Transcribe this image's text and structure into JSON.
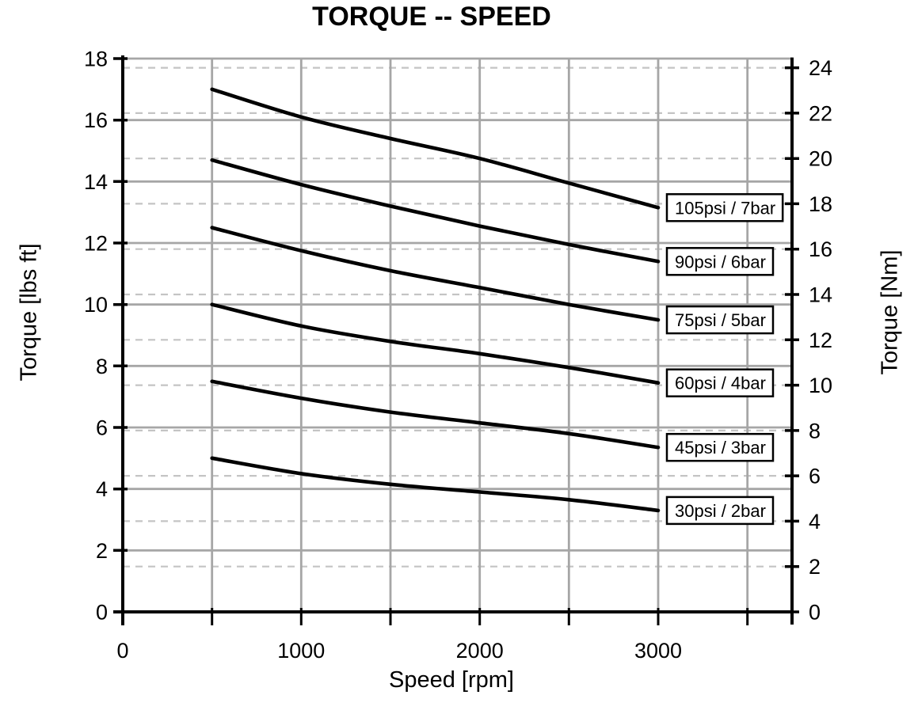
{
  "title": "TORQUE -- SPEED",
  "axes": {
    "x_label": "Speed [rpm]",
    "y_left_label": "Torque [lbs ft]",
    "y_right_label": "Torque [Nm]"
  },
  "chart_data": {
    "type": "line",
    "title": "TORQUE -- SPEED",
    "xlabel": "Speed [rpm]",
    "ylabel_left": "Torque [lbs ft]",
    "ylabel_right": "Torque [Nm]",
    "xlim": [
      0,
      3750
    ],
    "ylim_left": [
      0,
      18
    ],
    "ylim_right_Nm": [
      0,
      24.4
    ],
    "nm_per_lbsft": 1.35582,
    "x_tick_marks": [
      0,
      500,
      1000,
      1500,
      2000,
      2500,
      3000,
      3500
    ],
    "x_tick_labels": [
      0,
      1000,
      2000,
      3000
    ],
    "y_left_ticks": [
      0,
      2,
      4,
      6,
      8,
      10,
      12,
      14,
      16,
      18
    ],
    "y_right_ticks_Nm": [
      0,
      2,
      4,
      6,
      8,
      10,
      12,
      14,
      16,
      18,
      20,
      22,
      24
    ],
    "grid": {
      "horizontal_solid_every_lbsft": 2,
      "horizontal_dashed_every_Nm": 2,
      "vertical_solid_every_rpm": 500,
      "legend_position": "boxed labels at right end of each curve"
    },
    "x": [
      500,
      1000,
      1500,
      2000,
      2500,
      3000
    ],
    "series": [
      {
        "name": "105psi / 7bar",
        "values": [
          17.0,
          16.1,
          15.4,
          14.75,
          13.95,
          13.15
        ]
      },
      {
        "name": "90psi / 6bar",
        "values": [
          14.7,
          13.9,
          13.2,
          12.55,
          11.95,
          11.4
        ]
      },
      {
        "name": "75psi / 5bar",
        "values": [
          12.5,
          11.75,
          11.1,
          10.55,
          10.0,
          9.5
        ]
      },
      {
        "name": "60psi / 4bar",
        "values": [
          10.0,
          9.3,
          8.8,
          8.4,
          7.95,
          7.45
        ]
      },
      {
        "name": "45psi / 3bar",
        "values": [
          7.5,
          6.95,
          6.5,
          6.15,
          5.8,
          5.35
        ]
      },
      {
        "name": "30psi / 2bar",
        "values": [
          5.0,
          4.5,
          4.15,
          3.9,
          3.65,
          3.3
        ]
      }
    ],
    "colors": {
      "curve": "#000000",
      "axis": "#000000",
      "grid_solid": "#a6a6a6",
      "grid_dashed": "#c4c4c4",
      "label_box_bg": "#ffffff",
      "label_box_border": "#000000",
      "text": "#000000",
      "background": "#ffffff"
    }
  }
}
